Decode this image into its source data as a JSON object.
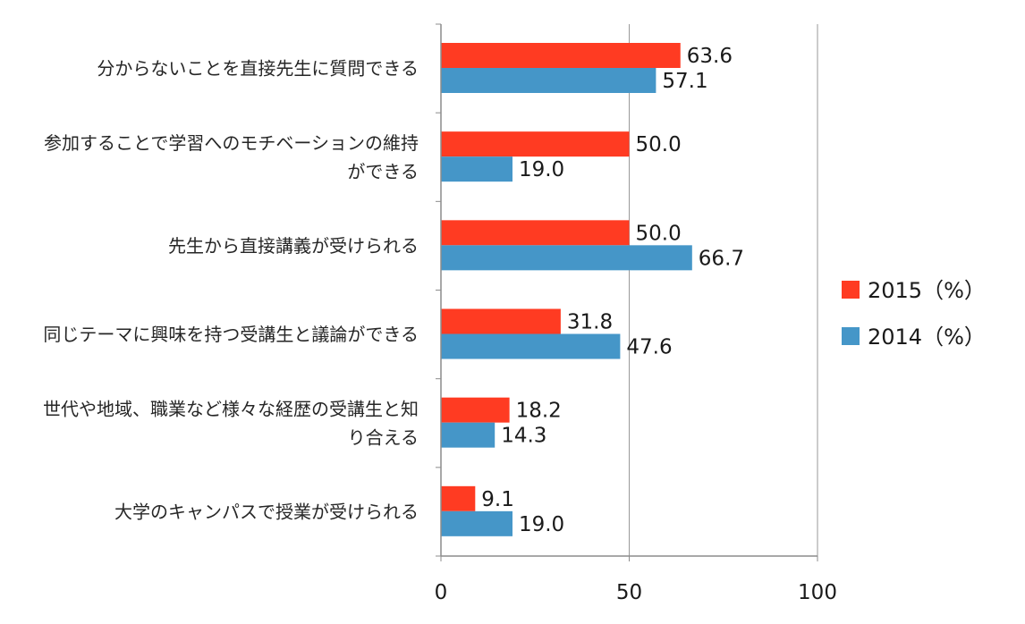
{
  "chart_data": {
    "type": "bar",
    "orientation": "horizontal",
    "title": "",
    "xlabel": "",
    "ylabel": "",
    "xlim": [
      0,
      100
    ],
    "x_ticks": [
      "0",
      "50",
      "100"
    ],
    "grid": true,
    "legend_position": "right",
    "categories": [
      [
        "分からないことを直接先生に質問できる"
      ],
      [
        "参加することで学習へのモチベーションの維持",
        "ができる"
      ],
      [
        "先生から直接講義が受けられる"
      ],
      [
        "同じテーマに興味を持つ受講生と議論ができる"
      ],
      [
        "世代や地域、職業など様々な経歴の受講生と知",
        "り合える"
      ],
      [
        "大学のキャンパスで授業が受けられる"
      ]
    ],
    "series": [
      {
        "name": "2015（%）",
        "color": "#ff3b22",
        "values": [
          63.6,
          50.0,
          50.0,
          31.8,
          18.2,
          9.1
        ],
        "labels": [
          "63.6",
          "50.0",
          "50.0",
          "31.8",
          "18.2",
          "9.1"
        ]
      },
      {
        "name": "2014（%）",
        "color": "#4596c8",
        "values": [
          57.1,
          19.0,
          66.7,
          47.6,
          14.3,
          19.0
        ],
        "labels": [
          "57.1",
          "19.0",
          "66.7",
          "47.6",
          "14.3",
          "19.0"
        ]
      }
    ]
  }
}
